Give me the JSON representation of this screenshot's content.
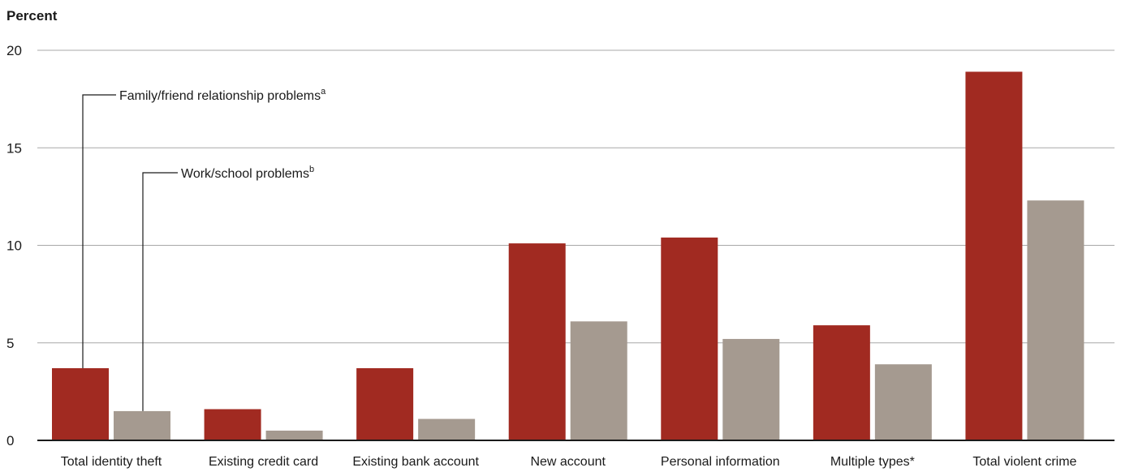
{
  "chart_data": {
    "type": "bar",
    "title": "",
    "xlabel": "",
    "ylabel": "Percent",
    "ylim": [
      0,
      20
    ],
    "yticks": [
      0,
      5,
      10,
      15,
      20
    ],
    "grid": true,
    "categories": [
      "Total identity theft",
      "Existing credit card",
      "Existing bank account",
      "New account",
      "Personal information",
      "Multiple types*",
      "Total violent crime"
    ],
    "series": [
      {
        "name": "Family/friend relationship problems",
        "superscript": "a",
        "color": "#a12a21",
        "values": [
          3.7,
          1.6,
          3.7,
          10.1,
          10.4,
          5.9,
          18.9
        ]
      },
      {
        "name": "Work/school problems",
        "superscript": "b",
        "color": "#a59a90",
        "values": [
          1.5,
          0.5,
          1.1,
          6.1,
          5.2,
          3.9,
          12.3
        ]
      }
    ]
  }
}
